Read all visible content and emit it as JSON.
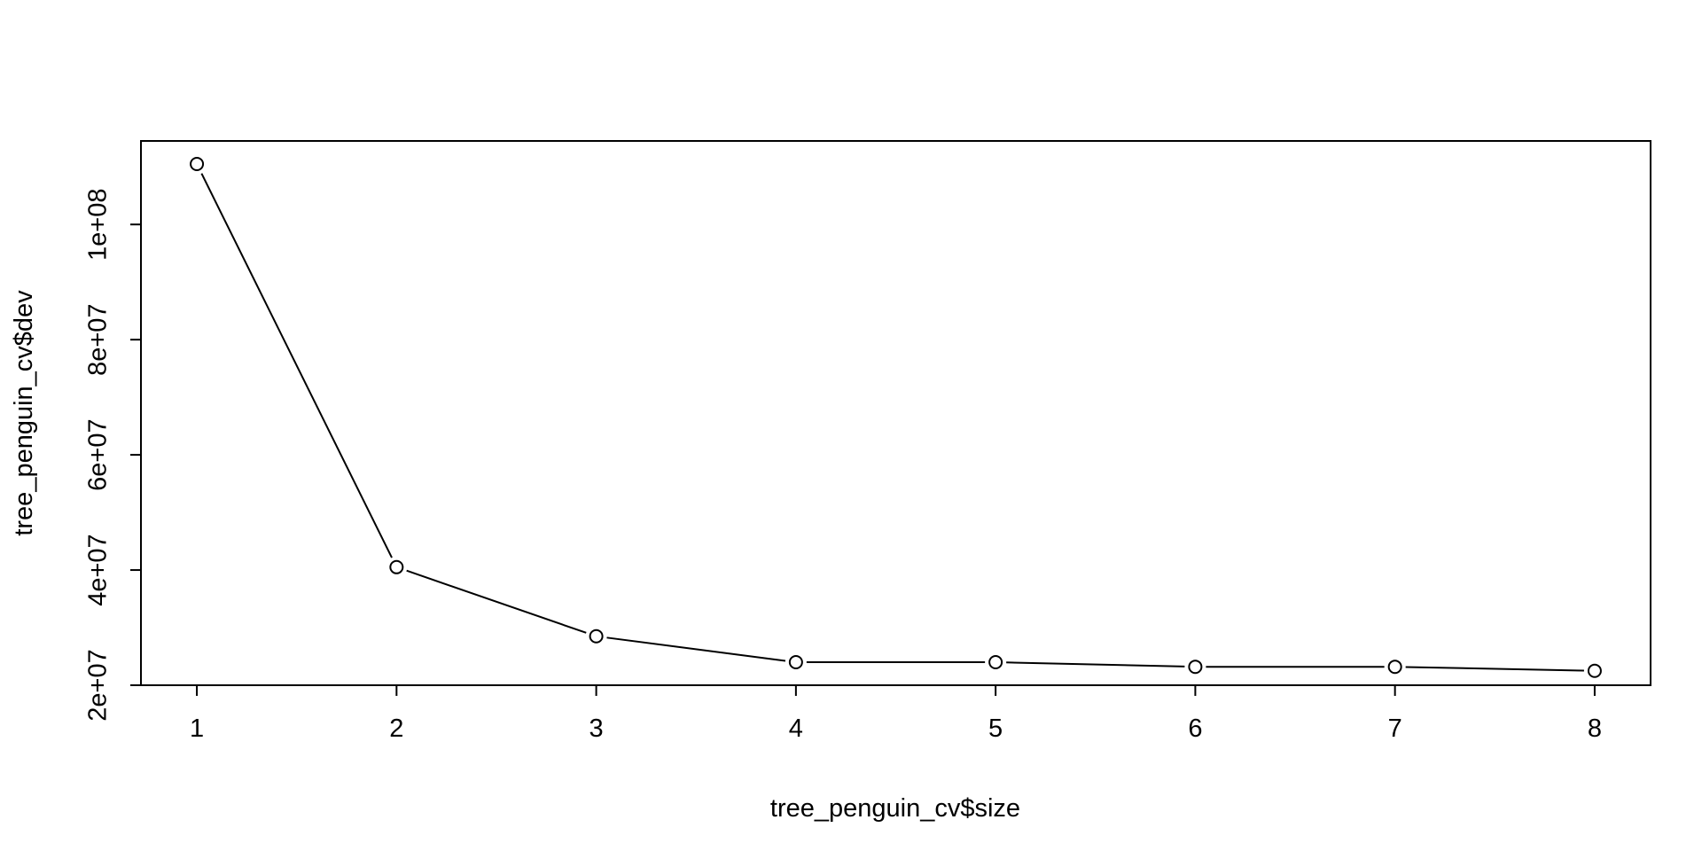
{
  "chart_data": {
    "type": "line",
    "title": "",
    "xlabel": "tree_penguin_cv$size",
    "ylabel": "tree_penguin_cv$dev",
    "x": [
      1,
      2,
      3,
      4,
      5,
      6,
      7,
      8
    ],
    "y": [
      110500000,
      40500000,
      28500000,
      24000000,
      24000000,
      23200000,
      23200000,
      22500000
    ],
    "xlim": [
      0.72,
      8.28
    ],
    "ylim": [
      20000000,
      114500000
    ],
    "x_ticks": [
      1,
      2,
      3,
      4,
      5,
      6,
      7,
      8
    ],
    "x_tick_labels": [
      "1",
      "2",
      "3",
      "4",
      "5",
      "6",
      "7",
      "8"
    ],
    "y_ticks": [
      20000000,
      40000000,
      60000000,
      80000000,
      100000000
    ],
    "y_tick_labels": [
      "2e+07",
      "4e+07",
      "6e+07",
      "8e+07",
      "1e+08"
    ],
    "markers": "open-circle",
    "grid": false,
    "legend": "none",
    "colors": {
      "line": "#000000",
      "marker_stroke": "#000000",
      "marker_fill": "#ffffff",
      "frame": "#000000",
      "background": "#ffffff"
    }
  }
}
